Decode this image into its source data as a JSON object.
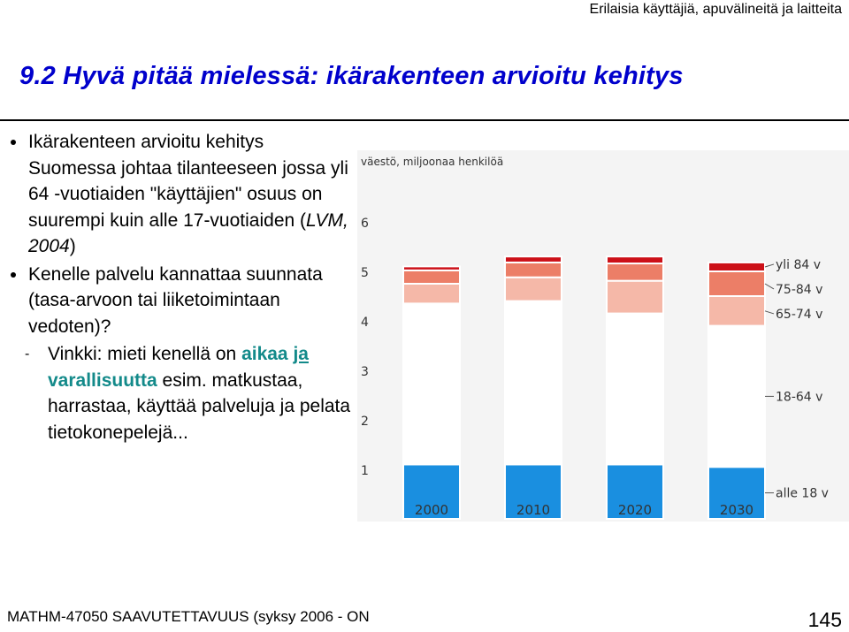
{
  "header": {
    "course_topic": "Erilaisia käyttäjiä, apuvälineitä ja laitteita"
  },
  "slide": {
    "title": "9.2 Hyvä pitää mielessä: ikärakenteen arvioitu kehitys",
    "bullet1_part1": "Ikärakenteen arvioitu kehitys Suomessa johtaa tilanteeseen jossa yli 64 -vuotiaiden \"käyttäjien\" osuus on suurempi kuin alle 17-vuotiaiden (",
    "bullet1_source": "LVM, 2004",
    "bullet1_end": ")",
    "bullet2": "Kenelle palvelu kannattaa suunnata (tasa-arvoon tai liiketoimintaan vedoten)?",
    "sub_dash": "-",
    "sub_part1": "Vinkki: mieti kenellä on ",
    "sub_hl1": "aikaa",
    "sub_hl2": "ja",
    "sub_hl3": "varallisuutta",
    "sub_part2": " esim. matkustaa, harrastaa, käyttää palveluja ja pelata tietokonepelejä..."
  },
  "footer": {
    "course": "MATHM-47050 SAAVUTETTAVUUS (syksy 2006 - ON",
    "page_number": "145"
  },
  "chart_data": {
    "type": "bar",
    "stacked": true,
    "title": "väestö, miljoonaa henkilöä",
    "categories": [
      "2000",
      "2010",
      "2020",
      "2030"
    ],
    "yticks": [
      1,
      2,
      3,
      4,
      5,
      6
    ],
    "ylim": [
      0,
      6.5
    ],
    "series": [
      {
        "name": "alle 18-vuotiaat",
        "label": "alle 18 v",
        "color": "#1a8fe0",
        "values": [
          1.1,
          1.1,
          1.1,
          1.05
        ]
      },
      {
        "name": "18-64-vuotiaat",
        "label": "18-64 v",
        "color": "#ffffff",
        "values": [
          3.25,
          3.3,
          3.05,
          2.85
        ]
      },
      {
        "name": "65-74-vuotiaat",
        "label": "65-74 v",
        "color": "#f5b8a8",
        "values": [
          0.4,
          0.48,
          0.66,
          0.6
        ]
      },
      {
        "name": "75-84-vuotiaat",
        "label": "75-84 v",
        "color": "#ec7e67",
        "values": [
          0.27,
          0.3,
          0.35,
          0.5
        ]
      },
      {
        "name": "yli 84-vuotiaat",
        "label": "yli 84 v",
        "color": "#cc1018",
        "values": [
          0.08,
          0.12,
          0.14,
          0.18
        ]
      }
    ],
    "grid": false,
    "legend": "right, labels beside last bar"
  }
}
